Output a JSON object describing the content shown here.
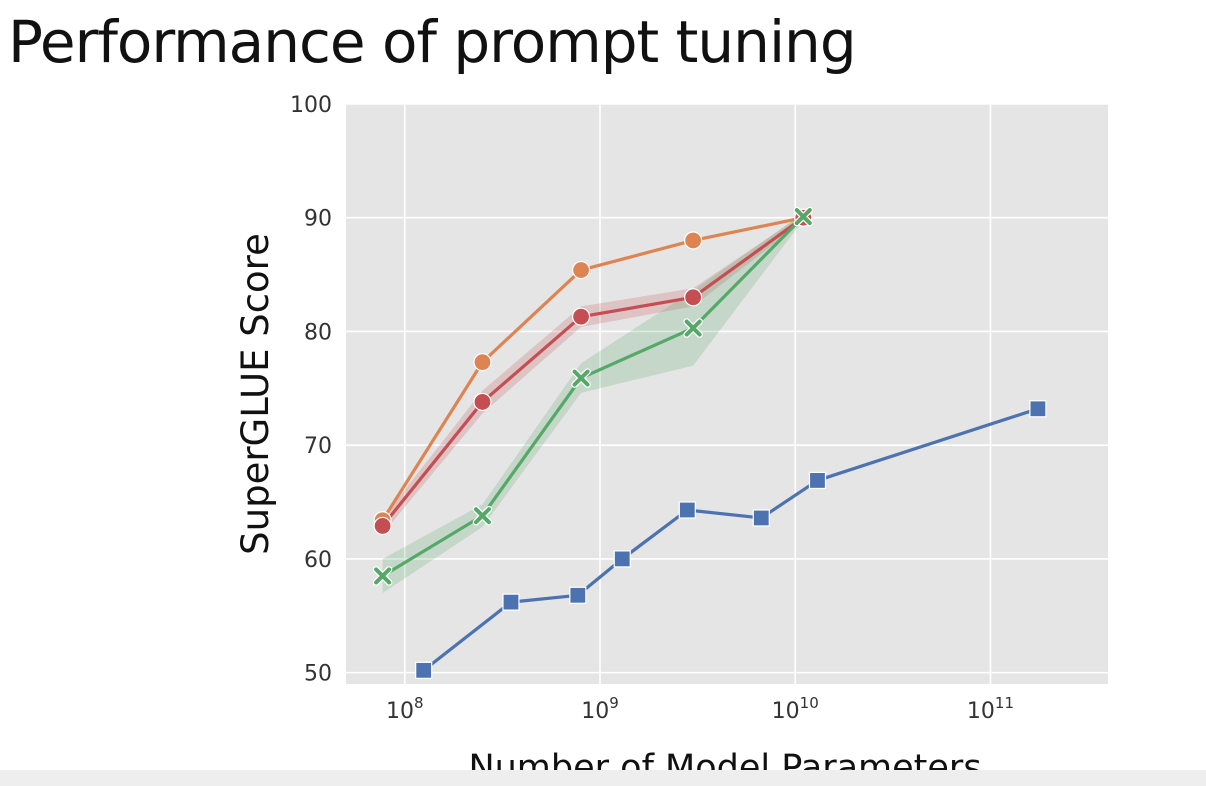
{
  "slide": {
    "title": "Performance of prompt tuning"
  },
  "chart_data": {
    "type": "line",
    "title": "",
    "xlabel": "Number of Model Parameters",
    "ylabel": "SuperGLUE Score",
    "x_scale": "log",
    "xlim": [
      50000000,
      400000000000
    ],
    "ylim": [
      49,
      100
    ],
    "x_ticks": [
      {
        "value": 100000000,
        "base": "10",
        "exp": "8"
      },
      {
        "value": 1000000000,
        "base": "10",
        "exp": "9"
      },
      {
        "value": 10000000000,
        "base": "10",
        "exp": "10"
      },
      {
        "value": 100000000000,
        "base": "10",
        "exp": "11"
      }
    ],
    "y_ticks": [
      50,
      60,
      70,
      80,
      90,
      100
    ],
    "grid": true,
    "background": "#e5e5e5",
    "legend": "none",
    "series": [
      {
        "color": "#4c72b0",
        "marker": "square",
        "band": false,
        "x": [
          125000000,
          350000000,
          770000000,
          1300000000,
          2800000000,
          6700000000,
          13000000000,
          175000000000
        ],
        "y": [
          50.2,
          56.2,
          56.8,
          60.0,
          64.3,
          63.6,
          66.9,
          73.2
        ]
      },
      {
        "color": "#dd8452",
        "marker": "circle",
        "band": false,
        "x": [
          77000000,
          250000000,
          800000000,
          3000000000,
          11000000000
        ],
        "y": [
          63.4,
          77.3,
          85.4,
          88.0,
          90.0
        ]
      },
      {
        "color": "#c44e52",
        "marker": "circle",
        "band": true,
        "x": [
          77000000,
          250000000,
          800000000,
          3000000000,
          11000000000
        ],
        "y": [
          62.9,
          73.8,
          81.3,
          83.0,
          90.0
        ],
        "y_low": [
          62.2,
          72.8,
          80.4,
          82.2,
          89.7
        ],
        "y_high": [
          63.6,
          74.8,
          82.2,
          83.8,
          90.3
        ]
      },
      {
        "color": "#55a868",
        "marker": "x",
        "band": true,
        "x": [
          77000000,
          250000000,
          800000000,
          3000000000,
          11000000000
        ],
        "y": [
          58.5,
          63.8,
          75.9,
          80.3,
          90.1
        ],
        "y_low": [
          57.0,
          62.8,
          74.6,
          77.0,
          89.8
        ],
        "y_high": [
          60.0,
          64.8,
          77.2,
          83.6,
          90.4
        ]
      }
    ]
  }
}
